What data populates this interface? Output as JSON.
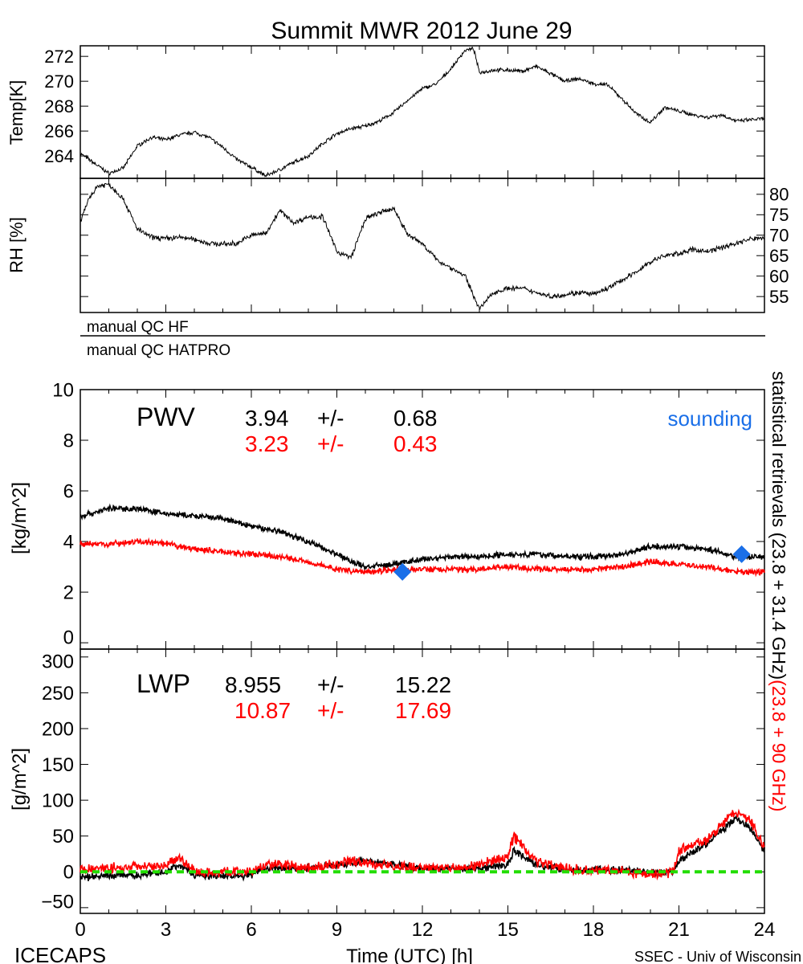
{
  "colors": {
    "black": "#000000",
    "red": "#ff0000",
    "green": "#22dd00",
    "blue": "#1a6fe8"
  },
  "title": "Summit MWR 2012 June 29",
  "footer": {
    "left": "ICECAPS",
    "center": "Time (UTC) [h]",
    "right": "SSEC - Univ of Wisconsin"
  },
  "qc": {
    "hf": "manual QC HF",
    "hatpro": "manual QC HATPRO"
  },
  "side_label": {
    "black": "statistical retrievals (23.8 + 31.4 GHz)",
    "red": "(23.8 + 90 GHz)"
  },
  "chart_data": [
    {
      "id": "temp",
      "type": "line",
      "ylabel": "Temp[K]",
      "xlabel": "Time (UTC) [h]",
      "xlim": [
        0,
        24
      ],
      "ylim": [
        262.2,
        272.85
      ],
      "yticks": [
        264,
        266,
        268,
        270,
        272
      ],
      "ytick_side": "left",
      "series": [
        {
          "name": "Temperature",
          "color": "#000000",
          "x": [
            0,
            0.5,
            1,
            1.5,
            2,
            2.5,
            3,
            3.5,
            4,
            4.5,
            5,
            5.5,
            6,
            6.5,
            7,
            7.5,
            8,
            8.5,
            9,
            9.5,
            10,
            10.5,
            11,
            11.5,
            12,
            12.5,
            13,
            13.5,
            13.8,
            14,
            14.5,
            15,
            15.5,
            16,
            16.5,
            17,
            17.5,
            18,
            18.5,
            19,
            19.5,
            20,
            20.5,
            21,
            21.5,
            22,
            22.5,
            23,
            23.5,
            24
          ],
          "y": [
            264.2,
            263.4,
            262.6,
            263.0,
            264.8,
            265.5,
            265.3,
            265.7,
            265.9,
            265.5,
            264.7,
            263.7,
            263.1,
            262.4,
            262.9,
            263.5,
            264.0,
            265.0,
            265.8,
            266.2,
            266.4,
            266.8,
            267.5,
            268.5,
            269.4,
            269.8,
            271.0,
            272.5,
            272.6,
            270.7,
            270.9,
            270.9,
            270.8,
            271.2,
            270.6,
            270.0,
            270.2,
            269.8,
            269.7,
            268.6,
            267.4,
            266.7,
            267.9,
            267.6,
            267.3,
            267.1,
            267.3,
            266.8,
            266.9,
            267.0
          ]
        }
      ]
    },
    {
      "id": "rh",
      "type": "line",
      "ylabel": "RH [%]",
      "xlim": [
        0,
        24
      ],
      "ylim": [
        51.1,
        83.9
      ],
      "yticks": [
        55,
        60,
        65,
        70,
        75,
        80
      ],
      "ytick_side": "right",
      "series": [
        {
          "name": "Relative humidity",
          "color": "#000000",
          "x": [
            0,
            0.3,
            0.6,
            1,
            1.5,
            2,
            2.5,
            3,
            3.5,
            4,
            4.5,
            5,
            5.5,
            6,
            6.5,
            7,
            7.5,
            8,
            8.5,
            9,
            9.5,
            10,
            10.5,
            11,
            11.5,
            12,
            12.5,
            13,
            13.5,
            14,
            14.5,
            15,
            15.5,
            16,
            16.5,
            17,
            17.5,
            18,
            18.5,
            19,
            19.5,
            20,
            20.5,
            21,
            21.5,
            22,
            22.5,
            23,
            23.5,
            24
          ],
          "y": [
            73,
            79,
            82,
            82.5,
            79,
            71.5,
            69.5,
            69.2,
            69.5,
            69,
            68,
            67.8,
            68,
            70,
            70.5,
            76,
            73,
            74.5,
            74.5,
            66,
            64.5,
            74,
            75.5,
            76.5,
            70,
            68,
            64,
            62,
            60,
            52,
            56,
            57,
            57,
            56,
            55,
            55.5,
            56,
            55.5,
            57,
            59,
            61,
            63.5,
            65,
            65.5,
            66.5,
            66,
            67,
            68,
            69,
            69.5
          ]
        }
      ]
    },
    {
      "id": "pwv",
      "type": "line",
      "title": "PWV",
      "ylabel": "[kg/m^2]",
      "xlim": [
        0,
        24
      ],
      "ylim": [
        -0.25,
        10
      ],
      "yticks": [
        0,
        2,
        4,
        6,
        8,
        10
      ],
      "ytick_side": "left",
      "stats": [
        {
          "mean": "3.94",
          "pm": "+/-",
          "std": "0.68",
          "color": "#000000"
        },
        {
          "mean": "3.23",
          "pm": "+/-",
          "std": "0.43",
          "color": "#ff0000"
        }
      ],
      "legend": "sounding",
      "series": [
        {
          "name": "23.8 + 31.4 GHz",
          "color": "#000000",
          "x": [
            0,
            1,
            2,
            3,
            4,
            5,
            6,
            7,
            8,
            9,
            9.5,
            10,
            11,
            12,
            13,
            14,
            15,
            16,
            17,
            18,
            19,
            20,
            21,
            22,
            23,
            24
          ],
          "y": [
            5.0,
            5.3,
            5.3,
            5.1,
            5.0,
            4.9,
            4.6,
            4.4,
            4.0,
            3.5,
            3.2,
            3.0,
            3.1,
            3.3,
            3.4,
            3.4,
            3.5,
            3.5,
            3.4,
            3.4,
            3.5,
            3.8,
            3.8,
            3.7,
            3.4,
            3.4
          ]
        },
        {
          "name": "23.8 + 90 GHz",
          "color": "#ff0000",
          "x": [
            0,
            1,
            2,
            3,
            4,
            5,
            6,
            7,
            8,
            9,
            10,
            11,
            12,
            13,
            14,
            15,
            16,
            17,
            18,
            19,
            20,
            21,
            22,
            23,
            24
          ],
          "y": [
            3.9,
            3.9,
            4.0,
            3.9,
            3.7,
            3.6,
            3.5,
            3.4,
            3.2,
            2.9,
            2.8,
            2.9,
            2.9,
            2.9,
            2.9,
            3.0,
            2.9,
            2.9,
            2.9,
            3.0,
            3.2,
            3.1,
            3.0,
            2.8,
            2.8
          ]
        }
      ],
      "soundings": {
        "x": [
          11.3,
          23.2
        ],
        "y": [
          2.8,
          3.5
        ],
        "color": "#1a6fe8"
      }
    },
    {
      "id": "lwp",
      "type": "line",
      "title": "LWP",
      "ylabel": "[g/m^2]",
      "xlim": [
        0,
        24
      ],
      "ylim": [
        -58,
        311
      ],
      "yticks": [
        -50,
        0,
        50,
        100,
        150,
        200,
        250,
        300
      ],
      "ytick_side": "left",
      "xticks": [
        0,
        3,
        6,
        9,
        12,
        15,
        18,
        21,
        24
      ],
      "stats": [
        {
          "mean": "8.955",
          "pm": "+/-",
          "std": "15.22",
          "color": "#000000"
        },
        {
          "mean": "10.87",
          "pm": "+/-",
          "std": "17.69",
          "color": "#ff0000"
        }
      ],
      "series": [
        {
          "name": "23.8 + 31.4 GHz",
          "color": "#000000",
          "x": [
            0,
            1,
            2,
            3,
            3.5,
            4,
            5,
            6,
            6.5,
            7,
            8,
            9,
            10,
            11,
            12,
            13,
            14,
            15,
            15.2,
            16,
            17,
            18,
            19,
            20,
            20.8,
            21,
            22,
            23,
            23.5,
            24
          ],
          "y": [
            -8,
            -5,
            -5,
            0,
            10,
            -5,
            -5,
            -5,
            5,
            5,
            5,
            10,
            15,
            10,
            5,
            5,
            5,
            10,
            30,
            10,
            3,
            3,
            3,
            -2,
            0,
            15,
            40,
            75,
            60,
            30
          ]
        },
        {
          "name": "23.8 + 90 GHz",
          "color": "#ff0000",
          "x": [
            0,
            1,
            2,
            3,
            3.5,
            4,
            5,
            6,
            6.5,
            7,
            8,
            9,
            9.5,
            10,
            11,
            12,
            13,
            14,
            15,
            15.2,
            16,
            17,
            18,
            19,
            20,
            20.8,
            21,
            22,
            23,
            23.5,
            24
          ],
          "y": [
            3,
            5,
            8,
            10,
            20,
            0,
            0,
            0,
            10,
            10,
            5,
            10,
            15,
            12,
            8,
            5,
            5,
            10,
            20,
            50,
            15,
            5,
            2,
            2,
            -5,
            0,
            30,
            45,
            85,
            70,
            35
          ]
        },
        {
          "name": "zero line",
          "color": "#22dd00",
          "x": [
            0,
            24
          ],
          "y": [
            0,
            0
          ],
          "style": "dashed"
        }
      ]
    }
  ]
}
